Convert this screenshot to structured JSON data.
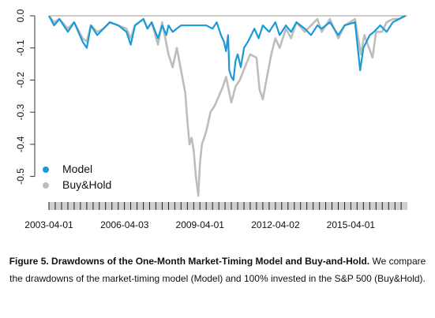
{
  "chart_data": {
    "type": "line",
    "x_tick_labels": [
      "2003-04-01",
      "2006-04-03",
      "2009-04-01",
      "2012-04-02",
      "2015-04-01"
    ],
    "y_tick_labels": [
      "0.0",
      "-0.1",
      "-0.2",
      "-0.3",
      "-0.4",
      "-0.5"
    ],
    "y_ticks": [
      0.0,
      -0.1,
      -0.2,
      -0.3,
      -0.4,
      -0.5
    ],
    "ylim": [
      -0.56,
      0.005
    ],
    "xlim": [
      "2003-04-01",
      "2017-06-30"
    ],
    "grid": false,
    "legend_position": "bottom-left",
    "series": [
      {
        "name": "Model",
        "color": "#1a9bd7",
        "points": [
          [
            "2003-04-01",
            0.0
          ],
          [
            "2003-06-15",
            -0.03
          ],
          [
            "2003-09-01",
            -0.01
          ],
          [
            "2004-01-01",
            -0.05
          ],
          [
            "2004-04-01",
            -0.02
          ],
          [
            "2004-08-01",
            -0.08
          ],
          [
            "2004-10-01",
            -0.1
          ],
          [
            "2004-12-01",
            -0.03
          ],
          [
            "2005-03-01",
            -0.06
          ],
          [
            "2005-06-01",
            -0.04
          ],
          [
            "2005-09-01",
            -0.02
          ],
          [
            "2006-01-01",
            -0.03
          ],
          [
            "2006-05-01",
            -0.05
          ],
          [
            "2006-07-01",
            -0.09
          ],
          [
            "2006-09-01",
            -0.03
          ],
          [
            "2007-01-01",
            -0.01
          ],
          [
            "2007-03-01",
            -0.04
          ],
          [
            "2007-05-01",
            -0.02
          ],
          [
            "2007-08-01",
            -0.07
          ],
          [
            "2007-10-01",
            -0.03
          ],
          [
            "2007-12-01",
            -0.06
          ],
          [
            "2008-01-01",
            -0.03
          ],
          [
            "2008-03-01",
            -0.05
          ],
          [
            "2008-05-01",
            -0.04
          ],
          [
            "2008-07-01",
            -0.03
          ],
          [
            "2009-07-01",
            -0.03
          ],
          [
            "2009-10-01",
            -0.04
          ],
          [
            "2009-12-01",
            -0.02
          ],
          [
            "2010-02-01",
            -0.06
          ],
          [
            "2010-03-15",
            -0.08
          ],
          [
            "2010-04-15",
            -0.11
          ],
          [
            "2010-05-15",
            -0.06
          ],
          [
            "2010-06-01",
            -0.17
          ],
          [
            "2010-07-01",
            -0.19
          ],
          [
            "2010-08-01",
            -0.2
          ],
          [
            "2010-09-01",
            -0.14
          ],
          [
            "2010-10-01",
            -0.12
          ],
          [
            "2010-11-15",
            -0.16
          ],
          [
            "2011-01-01",
            -0.1
          ],
          [
            "2011-03-01",
            -0.08
          ],
          [
            "2011-06-01",
            -0.04
          ],
          [
            "2011-08-01",
            -0.07
          ],
          [
            "2011-10-01",
            -0.03
          ],
          [
            "2012-01-01",
            -0.05
          ],
          [
            "2012-04-01",
            -0.02
          ],
          [
            "2012-06-01",
            -0.06
          ],
          [
            "2012-09-01",
            -0.03
          ],
          [
            "2012-11-15",
            -0.05
          ],
          [
            "2013-02-01",
            -0.02
          ],
          [
            "2013-06-01",
            -0.04
          ],
          [
            "2013-09-01",
            -0.06
          ],
          [
            "2013-12-01",
            -0.03
          ],
          [
            "2014-02-01",
            -0.04
          ],
          [
            "2014-06-01",
            -0.02
          ],
          [
            "2014-10-01",
            -0.06
          ],
          [
            "2015-01-01",
            -0.03
          ],
          [
            "2015-06-01",
            -0.02
          ],
          [
            "2015-08-15",
            -0.17
          ],
          [
            "2015-10-01",
            -0.1
          ],
          [
            "2016-01-01",
            -0.06
          ],
          [
            "2016-03-01",
            -0.05
          ],
          [
            "2016-06-01",
            -0.03
          ],
          [
            "2016-09-01",
            -0.05
          ],
          [
            "2016-12-01",
            -0.02
          ],
          [
            "2017-03-01",
            -0.01
          ],
          [
            "2017-06-01",
            0.0
          ]
        ]
      },
      {
        "name": "Buy&Hold",
        "color": "#bdbdbd",
        "points": [
          [
            "2003-04-01",
            0.0
          ],
          [
            "2003-06-15",
            -0.02
          ],
          [
            "2003-09-01",
            -0.01
          ],
          [
            "2004-01-01",
            -0.04
          ],
          [
            "2004-04-01",
            -0.02
          ],
          [
            "2004-08-01",
            -0.07
          ],
          [
            "2004-10-01",
            -0.08
          ],
          [
            "2004-12-01",
            -0.03
          ],
          [
            "2005-03-01",
            -0.05
          ],
          [
            "2005-06-01",
            -0.04
          ],
          [
            "2005-09-01",
            -0.02
          ],
          [
            "2006-01-01",
            -0.03
          ],
          [
            "2006-05-01",
            -0.04
          ],
          [
            "2006-07-01",
            -0.07
          ],
          [
            "2006-09-01",
            -0.03
          ],
          [
            "2007-01-01",
            -0.01
          ],
          [
            "2007-03-01",
            -0.04
          ],
          [
            "2007-05-01",
            -0.02
          ],
          [
            "2007-08-01",
            -0.09
          ],
          [
            "2007-10-01",
            -0.02
          ],
          [
            "2008-01-01",
            -0.12
          ],
          [
            "2008-03-01",
            -0.16
          ],
          [
            "2008-05-01",
            -0.1
          ],
          [
            "2008-07-01",
            -0.17
          ],
          [
            "2008-09-01",
            -0.24
          ],
          [
            "2008-10-01",
            -0.33
          ],
          [
            "2008-11-01",
            -0.4
          ],
          [
            "2008-12-01",
            -0.38
          ],
          [
            "2009-01-01",
            -0.42
          ],
          [
            "2009-02-01",
            -0.5
          ],
          [
            "2009-03-09",
            -0.56
          ],
          [
            "2009-04-01",
            -0.46
          ],
          [
            "2009-05-01",
            -0.4
          ],
          [
            "2009-07-01",
            -0.36
          ],
          [
            "2009-09-01",
            -0.3
          ],
          [
            "2009-11-01",
            -0.28
          ],
          [
            "2010-01-01",
            -0.25
          ],
          [
            "2010-03-01",
            -0.22
          ],
          [
            "2010-04-15",
            -0.19
          ],
          [
            "2010-07-01",
            -0.27
          ],
          [
            "2010-09-01",
            -0.22
          ],
          [
            "2010-11-01",
            -0.2
          ],
          [
            "2011-02-01",
            -0.15
          ],
          [
            "2011-04-01",
            -0.12
          ],
          [
            "2011-07-01",
            -0.13
          ],
          [
            "2011-08-15",
            -0.23
          ],
          [
            "2011-10-01",
            -0.26
          ],
          [
            "2011-12-01",
            -0.19
          ],
          [
            "2012-02-01",
            -0.12
          ],
          [
            "2012-04-01",
            -0.07
          ],
          [
            "2012-06-01",
            -0.1
          ],
          [
            "2012-09-01",
            -0.04
          ],
          [
            "2012-11-15",
            -0.07
          ],
          [
            "2013-02-01",
            -0.02
          ],
          [
            "2013-06-01",
            -0.05
          ],
          [
            "2013-09-01",
            -0.03
          ],
          [
            "2013-12-01",
            -0.01
          ],
          [
            "2014-02-01",
            -0.05
          ],
          [
            "2014-06-01",
            -0.01
          ],
          [
            "2014-10-01",
            -0.07
          ],
          [
            "2015-01-01",
            -0.03
          ],
          [
            "2015-06-01",
            -0.01
          ],
          [
            "2015-08-25",
            -0.12
          ],
          [
            "2015-10-15",
            -0.06
          ],
          [
            "2016-02-11",
            -0.13
          ],
          [
            "2016-04-01",
            -0.05
          ],
          [
            "2016-06-27",
            -0.05
          ],
          [
            "2016-09-01",
            -0.02
          ],
          [
            "2016-12-01",
            -0.01
          ],
          [
            "2017-03-01",
            -0.01
          ],
          [
            "2017-06-01",
            0.0
          ]
        ]
      }
    ]
  },
  "caption": {
    "bold": "Figure 5. Drawdowns of the One-Month Market-Timing Model and Buy-and-Hold.",
    "text": "We compare the drawdowns of the market-timing model (Model) and 100% invested in the S&P 500 (Buy&Hold)."
  }
}
